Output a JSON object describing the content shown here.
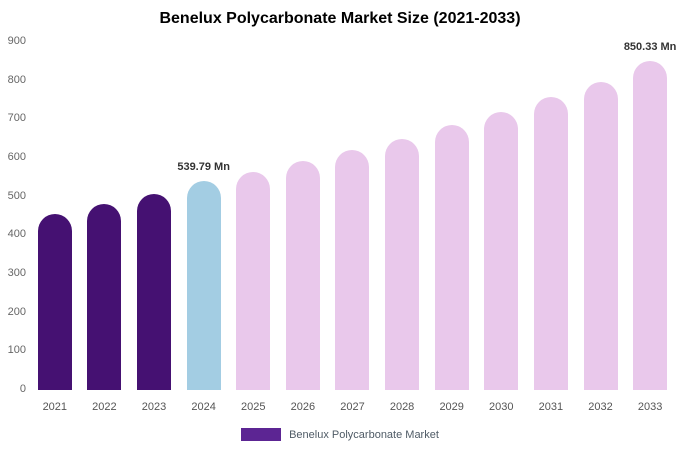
{
  "title": "Benelux Polycarbonate Market Size (2021-2033)",
  "legend": {
    "label": "Benelux Polycarbonate Market",
    "swatch_color": "#5c2593"
  },
  "colors": {
    "historical": "#451172",
    "highlight": "#a3cde3",
    "forecast": "#e9c8eb"
  },
  "chart_data": {
    "type": "bar",
    "title": "Benelux Polycarbonate Market Size (2021-2033)",
    "categories": [
      "2021",
      "2022",
      "2023",
      "2024",
      "2025",
      "2026",
      "2027",
      "2028",
      "2029",
      "2030",
      "2031",
      "2032",
      "2033"
    ],
    "values": [
      455,
      482,
      508,
      539.79,
      563,
      591,
      620,
      650,
      685,
      719,
      757,
      797,
      850.33
    ],
    "units": "Mn",
    "xlabel": "",
    "ylabel": "",
    "ylim": [
      0,
      900
    ],
    "yticks": [
      0,
      100,
      200,
      300,
      400,
      500,
      600,
      700,
      800,
      900
    ],
    "grid": false,
    "legend_position": "bottom",
    "legend_entries": [
      "Benelux Polycarbonate Market"
    ],
    "segments": [
      "historical",
      "historical",
      "historical",
      "highlight",
      "forecast",
      "forecast",
      "forecast",
      "forecast",
      "forecast",
      "forecast",
      "forecast",
      "forecast",
      "forecast"
    ],
    "annotations": [
      {
        "index": 3,
        "text": "539.79 Mn"
      },
      {
        "index": 12,
        "text": "850.33 Mn"
      }
    ]
  }
}
